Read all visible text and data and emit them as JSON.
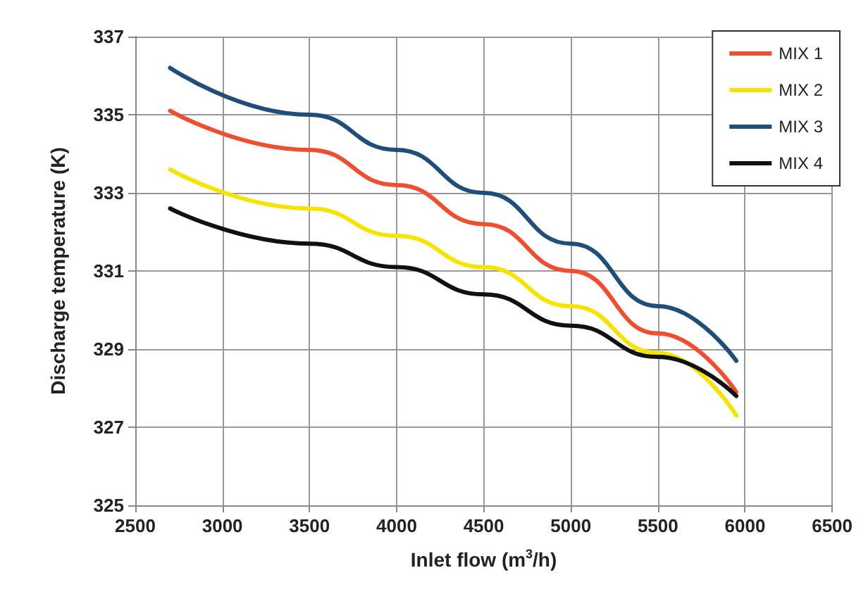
{
  "chart_data": {
    "type": "line",
    "xlabel": "Inlet flow (m$^{3}$/h)",
    "ylabel": "Discharge temperature (K)",
    "x": [
      2700,
      3500,
      4000,
      4500,
      5000,
      5500,
      5950
    ],
    "series": [
      {
        "name": "MIX 1",
        "color": "#f04e30",
        "values": [
          335.1,
          334.1,
          333.2,
          332.2,
          331.0,
          329.4,
          327.9
        ]
      },
      {
        "name": "MIX 2",
        "color": "#f5e400",
        "values": [
          333.6,
          332.6,
          331.9,
          331.1,
          330.1,
          328.9,
          327.3
        ]
      },
      {
        "name": "MIX 3",
        "color": "#1f4e79",
        "values": [
          336.2,
          335.0,
          334.1,
          333.0,
          331.7,
          330.1,
          328.7
        ]
      },
      {
        "name": "MIX 4",
        "color": "#111111",
        "values": [
          332.6,
          331.7,
          331.1,
          330.4,
          329.6,
          328.8,
          327.8
        ]
      }
    ],
    "xlim": [
      2500,
      6500
    ],
    "xticks": [
      2500,
      3000,
      3500,
      4000,
      4500,
      5000,
      5500,
      6000,
      6500
    ],
    "ylim": [
      325,
      337
    ],
    "yticks": [
      325,
      327,
      329,
      331,
      333,
      335,
      337
    ],
    "grid": true,
    "legend": "top right",
    "marker": "none",
    "line_style": "solid"
  }
}
